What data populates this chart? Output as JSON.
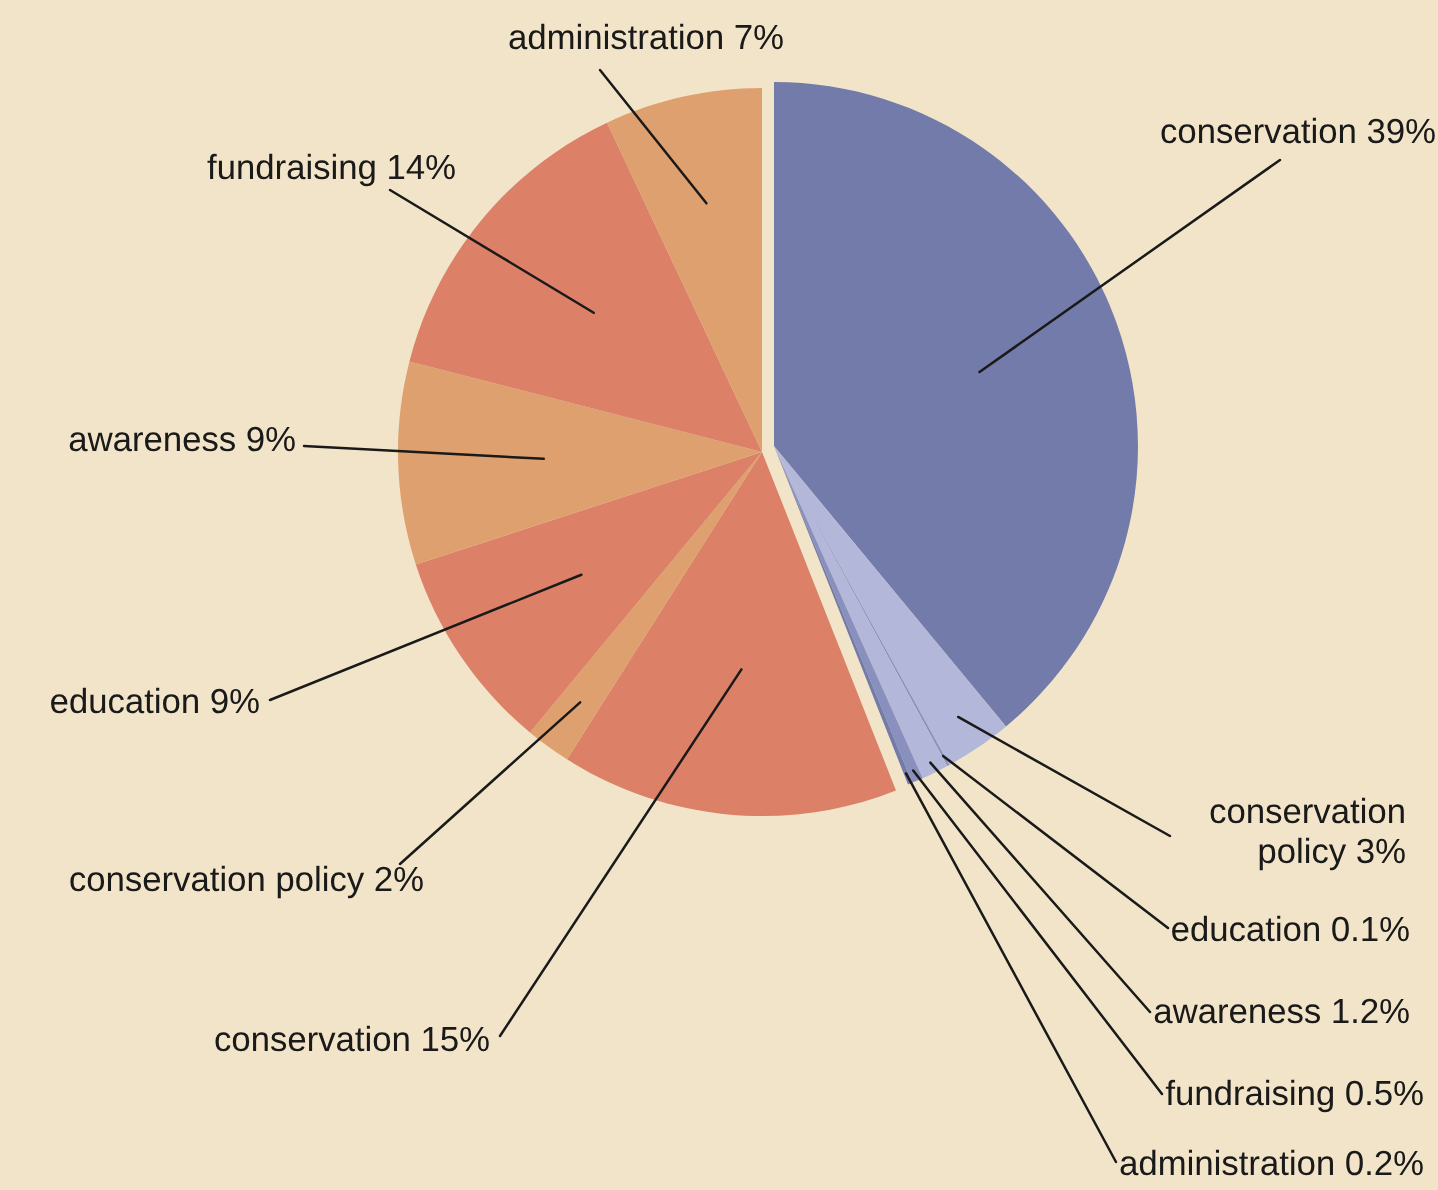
{
  "chart_data": {
    "type": "pie",
    "categories": [
      "conservation",
      "conservation policy",
      "education",
      "awareness",
      "fundraising",
      "administration",
      "conservation",
      "conservation policy",
      "education",
      "awareness",
      "fundraising",
      "administration"
    ],
    "values": [
      39,
      3,
      0.1,
      1.2,
      0.5,
      0.2,
      15,
      2,
      9,
      9,
      14,
      7
    ],
    "value_labels": [
      "39%",
      "3%",
      "0.1%",
      "1.2%",
      "0.5%",
      "0.2%",
      "15%",
      "2%",
      "9%",
      "9%",
      "14%",
      "7%"
    ],
    "colors": [
      "#727ba9",
      "#b3b7da",
      "#8a90bd",
      "#b3b7da",
      "#8a90bd",
      "#727ba9",
      "#dc8068",
      "#dea06e",
      "#dc8068",
      "#dea06e",
      "#dc8068",
      "#dea06e"
    ],
    "legend": false
  }
}
